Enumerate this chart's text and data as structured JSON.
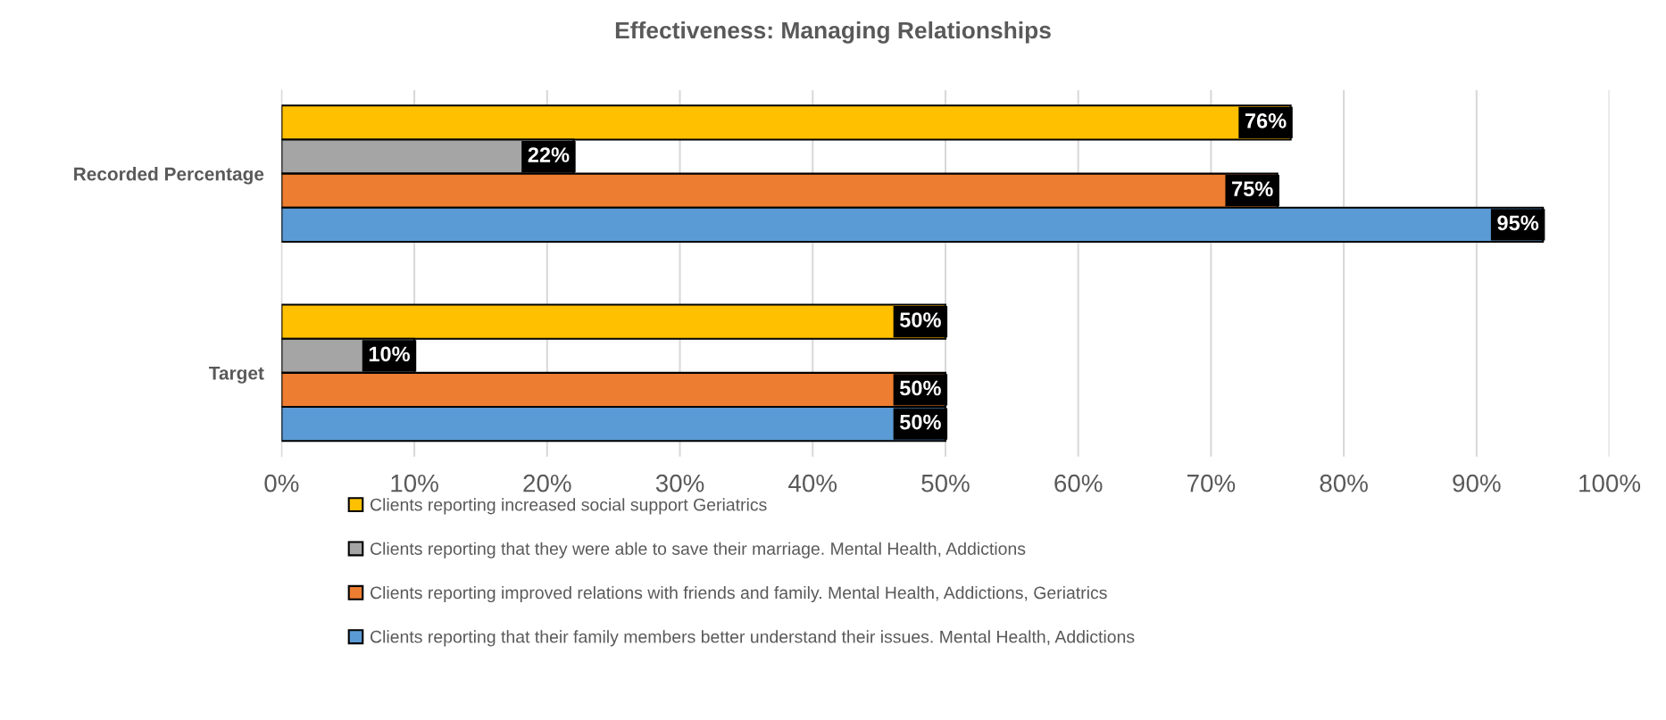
{
  "chart_data": {
    "type": "bar",
    "orientation": "horizontal",
    "title": "Effectiveness: Managing Relationships",
    "categories": [
      "Recorded Percentage",
      "Target"
    ],
    "series": [
      {
        "name": "Clients reporting increased social support Geriatrics",
        "color": "#ffc000",
        "values": [
          76,
          50
        ],
        "value_labels": [
          "76%",
          "50%"
        ]
      },
      {
        "name": "Clients reporting that they were able to save their marriage. Mental Health, Addictions",
        "color": "#a5a5a5",
        "values": [
          22,
          10
        ],
        "value_labels": [
          "22%",
          "10%"
        ]
      },
      {
        "name": "Clients reporting improved relations with friends and family. Mental Health, Addictions, Geriatrics",
        "color": "#ed7d31",
        "values": [
          75,
          50
        ],
        "value_labels": [
          "75%",
          "50%"
        ]
      },
      {
        "name": "Clients reporting that their family members better understand their issues. Mental Health, Addictions",
        "color": "#5b9bd5",
        "values": [
          95,
          50
        ],
        "value_labels": [
          "95%",
          "50%"
        ]
      }
    ],
    "xlim": [
      0,
      100
    ],
    "xticks": [
      {
        "value": 0,
        "label": "0%"
      },
      {
        "value": 10,
        "label": "10%"
      },
      {
        "value": 20,
        "label": "20%"
      },
      {
        "value": 30,
        "label": "30%"
      },
      {
        "value": 40,
        "label": "40%"
      },
      {
        "value": 50,
        "label": "50%"
      },
      {
        "value": 60,
        "label": "60%"
      },
      {
        "value": 70,
        "label": "70%"
      },
      {
        "value": 80,
        "label": "80%"
      },
      {
        "value": 90,
        "label": "90%"
      },
      {
        "value": 100,
        "label": "100%"
      }
    ],
    "grid": "x",
    "legend": "bottom"
  }
}
